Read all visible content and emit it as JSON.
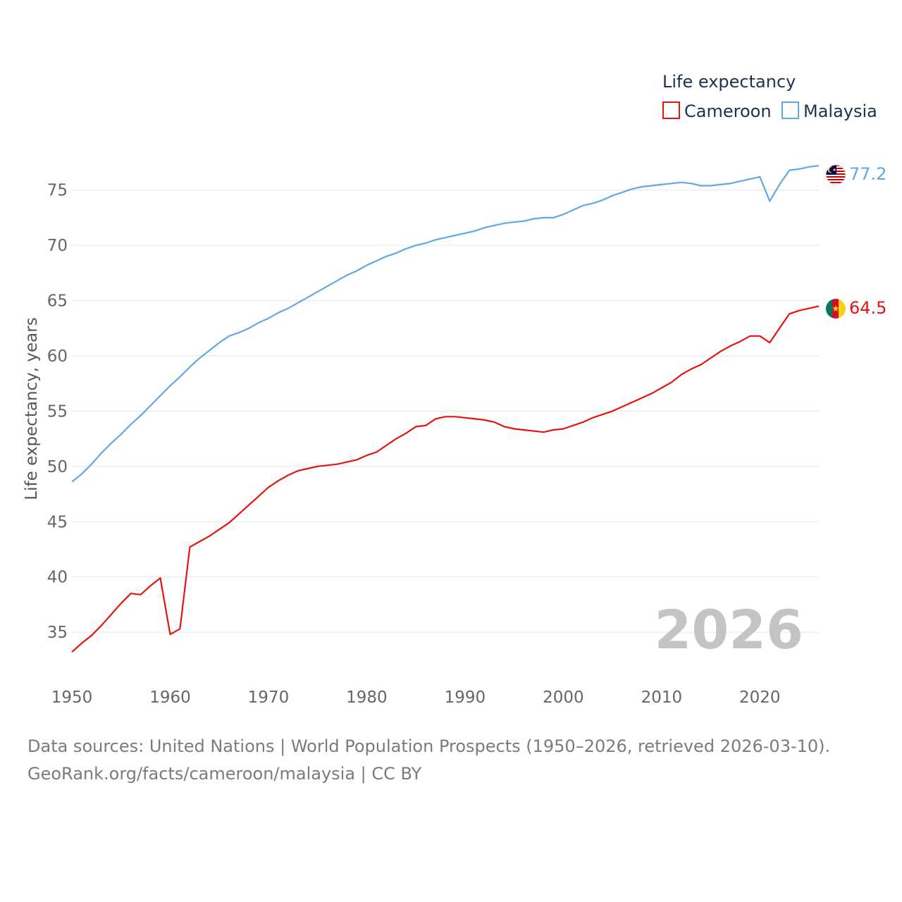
{
  "chart_data": {
    "type": "line",
    "legend_title": "Life expectancy",
    "ylabel": "Life expectancy, years",
    "xlabel": "",
    "xlim": [
      1950,
      2026
    ],
    "ylim": [
      31.5,
      79
    ],
    "x_ticks": [
      1950,
      1960,
      1970,
      1980,
      1990,
      2000,
      2010,
      2020
    ],
    "y_ticks": [
      35,
      40,
      45,
      50,
      55,
      60,
      65,
      70,
      75
    ],
    "current_year": "2026",
    "legend_position": "top-right",
    "grid": true,
    "series": [
      {
        "name": "Cameroon",
        "color": "#e8130f",
        "end_label": "64.5",
        "flag": "cameroon-flag",
        "points": [
          [
            1950,
            33.2
          ],
          [
            1951,
            34.0
          ],
          [
            1952,
            34.7
          ],
          [
            1953,
            35.6
          ],
          [
            1954,
            36.6
          ],
          [
            1955,
            37.6
          ],
          [
            1956,
            38.5
          ],
          [
            1957,
            38.4
          ],
          [
            1958,
            39.2
          ],
          [
            1959,
            39.9
          ],
          [
            1960,
            34.8
          ],
          [
            1961,
            35.3
          ],
          [
            1962,
            42.7
          ],
          [
            1963,
            43.2
          ],
          [
            1964,
            43.7
          ],
          [
            1965,
            44.3
          ],
          [
            1966,
            44.9
          ],
          [
            1967,
            45.7
          ],
          [
            1968,
            46.5
          ],
          [
            1969,
            47.3
          ],
          [
            1970,
            48.1
          ],
          [
            1971,
            48.7
          ],
          [
            1972,
            49.2
          ],
          [
            1973,
            49.6
          ],
          [
            1974,
            49.8
          ],
          [
            1975,
            50.0
          ],
          [
            1976,
            50.1
          ],
          [
            1977,
            50.2
          ],
          [
            1978,
            50.4
          ],
          [
            1979,
            50.6
          ],
          [
            1980,
            51.0
          ],
          [
            1981,
            51.3
          ],
          [
            1982,
            51.9
          ],
          [
            1983,
            52.5
          ],
          [
            1984,
            53.0
          ],
          [
            1985,
            53.6
          ],
          [
            1986,
            53.7
          ],
          [
            1987,
            54.3
          ],
          [
            1988,
            54.5
          ],
          [
            1989,
            54.5
          ],
          [
            1990,
            54.4
          ],
          [
            1991,
            54.3
          ],
          [
            1992,
            54.2
          ],
          [
            1993,
            54.0
          ],
          [
            1994,
            53.6
          ],
          [
            1995,
            53.4
          ],
          [
            1996,
            53.3
          ],
          [
            1997,
            53.2
          ],
          [
            1998,
            53.1
          ],
          [
            1999,
            53.3
          ],
          [
            2000,
            53.4
          ],
          [
            2001,
            53.7
          ],
          [
            2002,
            54.0
          ],
          [
            2003,
            54.4
          ],
          [
            2004,
            54.7
          ],
          [
            2005,
            55.0
          ],
          [
            2006,
            55.4
          ],
          [
            2007,
            55.8
          ],
          [
            2008,
            56.2
          ],
          [
            2009,
            56.6
          ],
          [
            2010,
            57.1
          ],
          [
            2011,
            57.6
          ],
          [
            2012,
            58.3
          ],
          [
            2013,
            58.8
          ],
          [
            2014,
            59.2
          ],
          [
            2015,
            59.8
          ],
          [
            2016,
            60.4
          ],
          [
            2017,
            60.9
          ],
          [
            2018,
            61.3
          ],
          [
            2019,
            61.8
          ],
          [
            2020,
            61.8
          ],
          [
            2021,
            61.2
          ],
          [
            2022,
            62.5
          ],
          [
            2023,
            63.8
          ],
          [
            2024,
            64.1
          ],
          [
            2025,
            64.3
          ],
          [
            2026,
            64.5
          ]
        ]
      },
      {
        "name": "Malaysia",
        "color": "#62a8e5",
        "end_label": "77.2",
        "flag": "malaysia-flag",
        "points": [
          [
            1950,
            48.6
          ],
          [
            1951,
            49.3
          ],
          [
            1952,
            50.2
          ],
          [
            1953,
            51.2
          ],
          [
            1954,
            52.1
          ],
          [
            1955,
            52.9
          ],
          [
            1956,
            53.8
          ],
          [
            1957,
            54.6
          ],
          [
            1958,
            55.5
          ],
          [
            1959,
            56.4
          ],
          [
            1960,
            57.3
          ],
          [
            1961,
            58.1
          ],
          [
            1962,
            59.0
          ],
          [
            1963,
            59.8
          ],
          [
            1964,
            60.5
          ],
          [
            1965,
            61.2
          ],
          [
            1966,
            61.8
          ],
          [
            1967,
            62.1
          ],
          [
            1968,
            62.5
          ],
          [
            1969,
            63.0
          ],
          [
            1970,
            63.4
          ],
          [
            1971,
            63.9
          ],
          [
            1972,
            64.3
          ],
          [
            1973,
            64.8
          ],
          [
            1974,
            65.3
          ],
          [
            1975,
            65.8
          ],
          [
            1976,
            66.3
          ],
          [
            1977,
            66.8
          ],
          [
            1978,
            67.3
          ],
          [
            1979,
            67.7
          ],
          [
            1980,
            68.2
          ],
          [
            1981,
            68.6
          ],
          [
            1982,
            69.0
          ],
          [
            1983,
            69.3
          ],
          [
            1984,
            69.7
          ],
          [
            1985,
            70.0
          ],
          [
            1986,
            70.2
          ],
          [
            1987,
            70.5
          ],
          [
            1988,
            70.7
          ],
          [
            1989,
            70.9
          ],
          [
            1990,
            71.1
          ],
          [
            1991,
            71.3
          ],
          [
            1992,
            71.6
          ],
          [
            1993,
            71.8
          ],
          [
            1994,
            72.0
          ],
          [
            1995,
            72.1
          ],
          [
            1996,
            72.2
          ],
          [
            1997,
            72.4
          ],
          [
            1998,
            72.5
          ],
          [
            1999,
            72.5
          ],
          [
            2000,
            72.8
          ],
          [
            2001,
            73.2
          ],
          [
            2002,
            73.6
          ],
          [
            2003,
            73.8
          ],
          [
            2004,
            74.1
          ],
          [
            2005,
            74.5
          ],
          [
            2006,
            74.8
          ],
          [
            2007,
            75.1
          ],
          [
            2008,
            75.3
          ],
          [
            2009,
            75.4
          ],
          [
            2010,
            75.5
          ],
          [
            2011,
            75.6
          ],
          [
            2012,
            75.7
          ],
          [
            2013,
            75.6
          ],
          [
            2014,
            75.4
          ],
          [
            2015,
            75.4
          ],
          [
            2016,
            75.5
          ],
          [
            2017,
            75.6
          ],
          [
            2018,
            75.8
          ],
          [
            2019,
            76.0
          ],
          [
            2020,
            76.2
          ],
          [
            2021,
            74.0
          ],
          [
            2022,
            75.5
          ],
          [
            2023,
            76.8
          ],
          [
            2024,
            76.9
          ],
          [
            2025,
            77.1
          ],
          [
            2026,
            77.2
          ]
        ]
      }
    ]
  },
  "footer": {
    "line1": "Data sources: United Nations | World Population Prospects (1950–2026, retrieved 2026-03-10).",
    "line2": "GeoRank.org/facts/cameroon/malaysia | CC BY"
  }
}
